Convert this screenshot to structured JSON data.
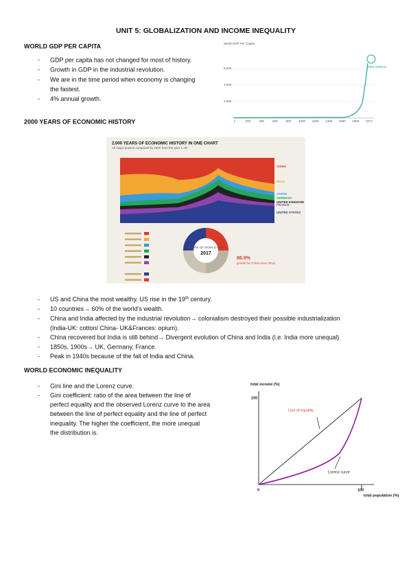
{
  "title": "UNIT 5: GLOBALIZATION AND INCOME INEQUALITY",
  "sections": [
    {
      "heading": "WORLD GDP PER CAPITA",
      "bullets": [
        [
          "GDP per capita has not changed for most of history."
        ],
        [
          "Growth in GDP in the industrial revolution."
        ],
        [
          "We are in the time period when economy is changing",
          "the fastest."
        ],
        [
          "4% annual growth."
        ]
      ]
    },
    {
      "heading": "2000 YEARS OF ECONOMIC HISTORY",
      "bullets": [
        [
          {
            "text": "US and China the most wealthy. US rise in the 19",
            "sup": "th",
            "after": " century."
          }
        ],
        [
          "10 countries→ 60% of the world’s wealth."
        ],
        [
          "China and India affected by the industrial revolution→ colonialism destroyed their possible industrialization",
          "(India-UK: cotton/ China- UK&Frances: opium)."
        ],
        [
          "China recovered but India is still behind→ Divergent evolution of China and India (i.e. India more unequal)"
        ],
        [
          "1850s, 1900s→ UK, Germany, France."
        ],
        [
          "Peak in 1940s because of the fall of India and China."
        ]
      ]
    },
    {
      "heading": "WORLD ECONOMIC INEQUALITY",
      "bullets": [
        [
          "Gini line and the Lorenz curve."
        ],
        [
          "Gini coefficient: ratio of the area between the line of",
          "perfect equality and the observed Lorenz curve to the area",
          "between the line of perfect equality and the line of perfect",
          "inequality. The higher the coefficient, the more unequal",
          "the distribution is."
        ]
      ]
    }
  ],
  "gdp_chart": {
    "title": "World GDP Per Capita",
    "yticks": [
      "6,000",
      "4,000",
      "2,000"
    ],
    "xticks": [
      "1",
      "200",
      "400",
      "600",
      "800",
      "1000",
      "1200",
      "1400",
      "1600",
      "1800",
      "2017"
    ],
    "series_label": "PER WORLD"
  },
  "infographic": {
    "title": "2,000 YEARS OF ECONOMIC HISTORY IN ONE CHART",
    "subtitle": "All major powers compared by GDP from the year 1 AD",
    "labels": [
      "CHINA",
      "INDIA",
      "JAPAN",
      "GERMANY",
      "UNITED KINGDOM",
      "FRANCE",
      "UNITED STATES"
    ],
    "donut_label": "SHARE OF WORLD GDP",
    "donut_year": "2017",
    "growth": "86.9%",
    "growth_note": "growth for China since 2010"
  },
  "lorenz_chart": {
    "y_label": "total income (%)",
    "y_top": "100",
    "origin": "0",
    "x_end": "100",
    "x_label": "total population (%)",
    "equality_label": "Line of equality",
    "curve_label": "Lorenz curve"
  }
}
